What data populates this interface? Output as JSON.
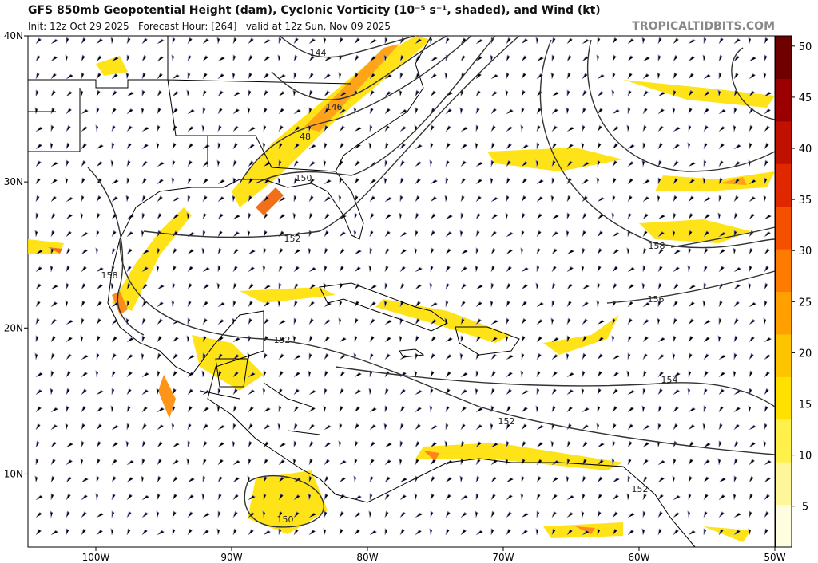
{
  "header": {
    "title": "GFS 850mb Geopotential Height (dam), Cyclonic Vorticity (10⁻⁵ s⁻¹, shaded), and Wind (kt)",
    "subtitle": "Init: 12z Oct 29 2025   Forecast Hour: [264]   valid at 12z Sun, Nov 09 2025",
    "credit": "TROPICALTIDBITS.COM"
  },
  "map": {
    "lonlim": [
      -105,
      -50
    ],
    "latlim": [
      5,
      40
    ],
    "lon_ticks": [
      {
        "value": -100,
        "label": "100W"
      },
      {
        "value": -90,
        "label": "90W"
      },
      {
        "value": -80,
        "label": "80W"
      },
      {
        "value": -70,
        "label": "70W"
      },
      {
        "value": -60,
        "label": "60W"
      },
      {
        "value": -50,
        "label": "50W"
      }
    ],
    "lat_ticks": [
      {
        "value": 40,
        "label": "40N"
      },
      {
        "value": 30,
        "label": "30N"
      },
      {
        "value": 20,
        "label": "20N"
      },
      {
        "value": 10,
        "label": "10N"
      }
    ],
    "height_contour_labels": [
      144,
      146,
      48,
      150,
      152,
      158,
      152,
      156,
      154,
      152,
      152,
      150,
      158
    ]
  },
  "colorbar": {
    "lim": [
      1,
      51
    ],
    "ticks": [
      5,
      10,
      15,
      20,
      25,
      30,
      35,
      40,
      45,
      50
    ],
    "colors": [
      "#fffde0",
      "#fff59a",
      "#fff04a",
      "#ffe000",
      "#ffc400",
      "#ffa000",
      "#ff7a00",
      "#f45000",
      "#e02800",
      "#c01000",
      "#9a0000",
      "#6e0000"
    ]
  }
}
